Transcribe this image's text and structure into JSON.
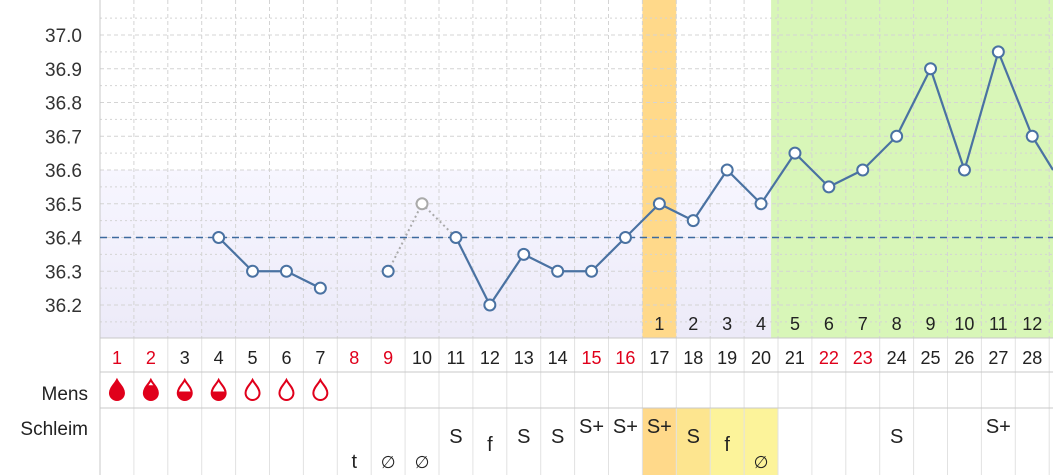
{
  "colors": {
    "line": "#4a72a2",
    "accent_red": "#e0001b",
    "ovulation_band": "#ffd98a",
    "infertile_band": "#d8f6b8",
    "mucus_peak_band": "#fde58f",
    "mucus_band": "#fcf39a",
    "baseline": "#3d6a9e",
    "grid": "#d4d4d4"
  },
  "chart_data": {
    "type": "line",
    "ylim": [
      36.1,
      37.1
    ],
    "yticks": [
      "36.2",
      "36.3",
      "36.4",
      "36.5",
      "36.6",
      "36.7",
      "36.8",
      "36.9",
      "37.0"
    ],
    "coverline": 36.4,
    "days": [
      "1",
      "2",
      "3",
      "4",
      "5",
      "6",
      "7",
      "8",
      "9",
      "10",
      "11",
      "12",
      "13",
      "14",
      "15",
      "16",
      "17",
      "18",
      "19",
      "20",
      "21",
      "22",
      "23",
      "24",
      "25",
      "26",
      "27",
      "28"
    ],
    "red_days": [
      "1",
      "2",
      "8",
      "9",
      "15",
      "16",
      "22",
      "23"
    ],
    "temperatures": [
      null,
      null,
      null,
      36.4,
      36.3,
      36.3,
      36.25,
      null,
      36.3,
      36.5,
      36.4,
      36.2,
      36.35,
      36.3,
      36.3,
      36.4,
      36.5,
      36.45,
      36.6,
      36.5,
      36.65,
      36.55,
      36.6,
      36.7,
      36.9,
      36.6,
      36.95,
      36.7
    ],
    "excluded_days": [
      "10"
    ],
    "post_ovulation_count": [
      {
        "day": "17",
        "label": "1"
      },
      {
        "day": "18",
        "label": "2"
      },
      {
        "day": "19",
        "label": "3"
      },
      {
        "day": "20",
        "label": "4"
      },
      {
        "day": "21",
        "label": "5"
      },
      {
        "day": "22",
        "label": "6"
      },
      {
        "day": "23",
        "label": "7"
      },
      {
        "day": "24",
        "label": "8"
      },
      {
        "day": "25",
        "label": "9"
      },
      {
        "day": "26",
        "label": "10"
      },
      {
        "day": "27",
        "label": "11"
      },
      {
        "day": "28",
        "label": "12"
      }
    ],
    "ovulation_day": "17",
    "infertile_from_day": "21"
  },
  "rows": {
    "mens_label": "Mens",
    "schleim_label": "Schleim",
    "mens": [
      {
        "day": "1",
        "level": "full"
      },
      {
        "day": "2",
        "level": "heavy"
      },
      {
        "day": "3",
        "level": "half"
      },
      {
        "day": "4",
        "level": "half"
      },
      {
        "day": "5",
        "level": "empty"
      },
      {
        "day": "6",
        "level": "empty"
      },
      {
        "day": "7",
        "level": "empty"
      }
    ],
    "schleim": [
      {
        "day": "8",
        "label": "t",
        "pos": "low"
      },
      {
        "day": "9",
        "label": "∅",
        "pos": "low"
      },
      {
        "day": "10",
        "label": "∅",
        "pos": "low"
      },
      {
        "day": "11",
        "label": "S",
        "pos": "top"
      },
      {
        "day": "12",
        "label": "f",
        "pos": "mid"
      },
      {
        "day": "13",
        "label": "S",
        "pos": "top"
      },
      {
        "day": "14",
        "label": "S",
        "pos": "top"
      },
      {
        "day": "15",
        "label": "S+",
        "pos": "upper"
      },
      {
        "day": "16",
        "label": "S+",
        "pos": "upper"
      },
      {
        "day": "17",
        "label": "S+",
        "pos": "upper"
      },
      {
        "day": "18",
        "label": "S",
        "pos": "top"
      },
      {
        "day": "19",
        "label": "f",
        "pos": "mid"
      },
      {
        "day": "20",
        "label": "∅",
        "pos": "low"
      },
      {
        "day": "24",
        "label": "S",
        "pos": "top"
      },
      {
        "day": "27",
        "label": "S+",
        "pos": "upper"
      }
    ],
    "schleim_bands": [
      {
        "day": "17",
        "band": "ovulation"
      },
      {
        "day": "18",
        "band": "peak"
      },
      {
        "day": "19",
        "band": "mucus"
      },
      {
        "day": "20",
        "band": "mucus"
      }
    ]
  }
}
